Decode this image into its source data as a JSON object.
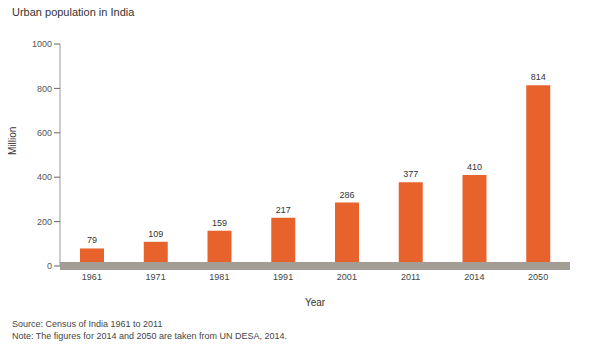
{
  "chart_data": {
    "type": "bar",
    "title": "Urban population in India",
    "categories": [
      "1961",
      "1971",
      "1981",
      "1991",
      "2001",
      "2011",
      "2014",
      "2050"
    ],
    "values": [
      79,
      109,
      159,
      217,
      286,
      377,
      410,
      814
    ],
    "color": "#e8622c",
    "ylim": [
      0,
      1000
    ],
    "yticks": [
      0,
      200,
      400,
      600,
      800,
      1000
    ],
    "y_label": "Million",
    "x_label": "Year",
    "data_labels": true,
    "grid": false,
    "annotations": [
      "Source: Census of India 1961 to 2011",
      "Note: The figures for 2014 and 2050 are taken from UN DESA, 2014."
    ]
  }
}
